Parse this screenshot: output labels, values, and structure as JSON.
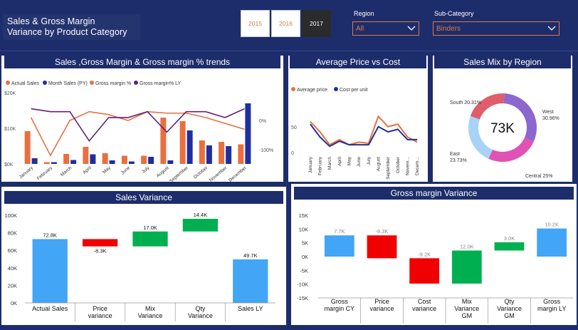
{
  "header": {
    "title_line1": "Sales & Gross Margin",
    "title_line2": "Variance by Product Category",
    "years": [
      "2015",
      "2016",
      "2017"
    ],
    "selected_year": "2017",
    "region": {
      "label": "Region",
      "value": "All"
    },
    "subcategory": {
      "label": "Sub-Category",
      "value": "Binders"
    }
  },
  "colors": {
    "navy": "#1d2d6b",
    "orange": "#e9703e",
    "darkblue": "#1f2f9f",
    "purple": "#62207a",
    "blue": "#42a5f5",
    "red": "#f00000",
    "green": "#00b050"
  },
  "chart_data": [
    {
      "type": "bar",
      "title": "Sales ,Gross Margin & Gross margin % trends",
      "categories": [
        "January",
        "February",
        "March",
        "April",
        "May",
        "June",
        "July",
        "August",
        "September",
        "October",
        "November",
        "December"
      ],
      "series": [
        {
          "name": "Actual Sales",
          "kind": "bar",
          "values": [
            9200,
            500,
            2800,
            4800,
            3000,
            2300,
            2300,
            13000,
            12000,
            6600,
            6200,
            5500
          ]
        },
        {
          "name": "Month Sales (PY)",
          "kind": "bar",
          "values": [
            1600,
            500,
            1100,
            2700,
            1000,
            700,
            2000,
            1000,
            9400,
            5200,
            5000,
            17000
          ]
        },
        {
          "name": "Gross margin %",
          "kind": "line",
          "values": [
            10,
            -120,
            0,
            30,
            20,
            0,
            30,
            25,
            25,
            10,
            -10,
            -30
          ]
        },
        {
          "name": "Gross margin% LY",
          "kind": "line",
          "values": [
            40,
            30,
            30,
            -70,
            10,
            10,
            30,
            -40,
            30,
            30,
            10,
            40
          ]
        }
      ],
      "y_left_ticks": [
        "$20K",
        "$10K",
        "$0K"
      ],
      "y_right_ticks": [
        "0%",
        "-100%"
      ]
    },
    {
      "type": "line",
      "title": "Average Price vs Cost",
      "categories": [
        "January",
        "February",
        "March",
        "April",
        "May",
        "June",
        "July",
        "August",
        "September",
        "October",
        "Novem...",
        "Decem..."
      ],
      "series": [
        {
          "name": "Average price",
          "values": [
            60,
            40,
            15,
            25,
            15,
            20,
            18,
            70,
            50,
            55,
            30,
            20
          ]
        },
        {
          "name": "Cost per unit",
          "values": [
            55,
            30,
            12,
            22,
            15,
            15,
            15,
            50,
            40,
            45,
            25,
            25
          ]
        }
      ],
      "y_ticks": [
        "50",
        "0"
      ],
      "ylim": [
        0,
        80
      ]
    },
    {
      "type": "pie",
      "title": "Sales Mix by Region",
      "center_label": "73K",
      "slices": [
        {
          "name": "West",
          "value": 30.96,
          "label": "West\n30.96%"
        },
        {
          "name": "Central",
          "value": 25,
          "label": "Central 25%"
        },
        {
          "name": "East",
          "value": 23.73,
          "label": "East\n23.73%"
        },
        {
          "name": "South",
          "value": 20.31,
          "label": "South 20.31%"
        }
      ]
    },
    {
      "type": "bar",
      "title": "Sales Variance",
      "categories": [
        "Actual Sales",
        "Price\nvariance",
        "Mix\nVariance",
        "Qty\nVariance",
        "Sales LY"
      ],
      "values": [
        72800,
        -8300,
        17000,
        14400,
        49700
      ],
      "labels": [
        "72.8K",
        "-8.3K",
        "17.0K",
        "14.4K",
        "49.7K"
      ],
      "y_ticks": [
        "100K",
        "80K",
        "60K",
        "40K",
        "20K",
        "0K"
      ],
      "ylim": [
        0,
        100000
      ]
    },
    {
      "type": "bar",
      "title": "Gross margin Variance",
      "categories": [
        "Gross\nmargin CY",
        "Price\nvariance",
        "Cost\nvariance",
        "Mix\nVariance\nGM",
        "Qty\nVariance\nGM",
        "Gross\nmargin LY"
      ],
      "values": [
        7700,
        -8300,
        -9200,
        12000,
        3000,
        10200
      ],
      "labels": [
        "7.7K",
        "-8.3K",
        "-9.2K",
        "12.0K",
        "3.0K",
        "10.2K"
      ],
      "y_ticks": [
        "15K",
        "10K",
        "5K",
        "0K",
        "-5K",
        "-10K",
        "-15K"
      ],
      "ylim": [
        -15000,
        15000
      ]
    }
  ]
}
